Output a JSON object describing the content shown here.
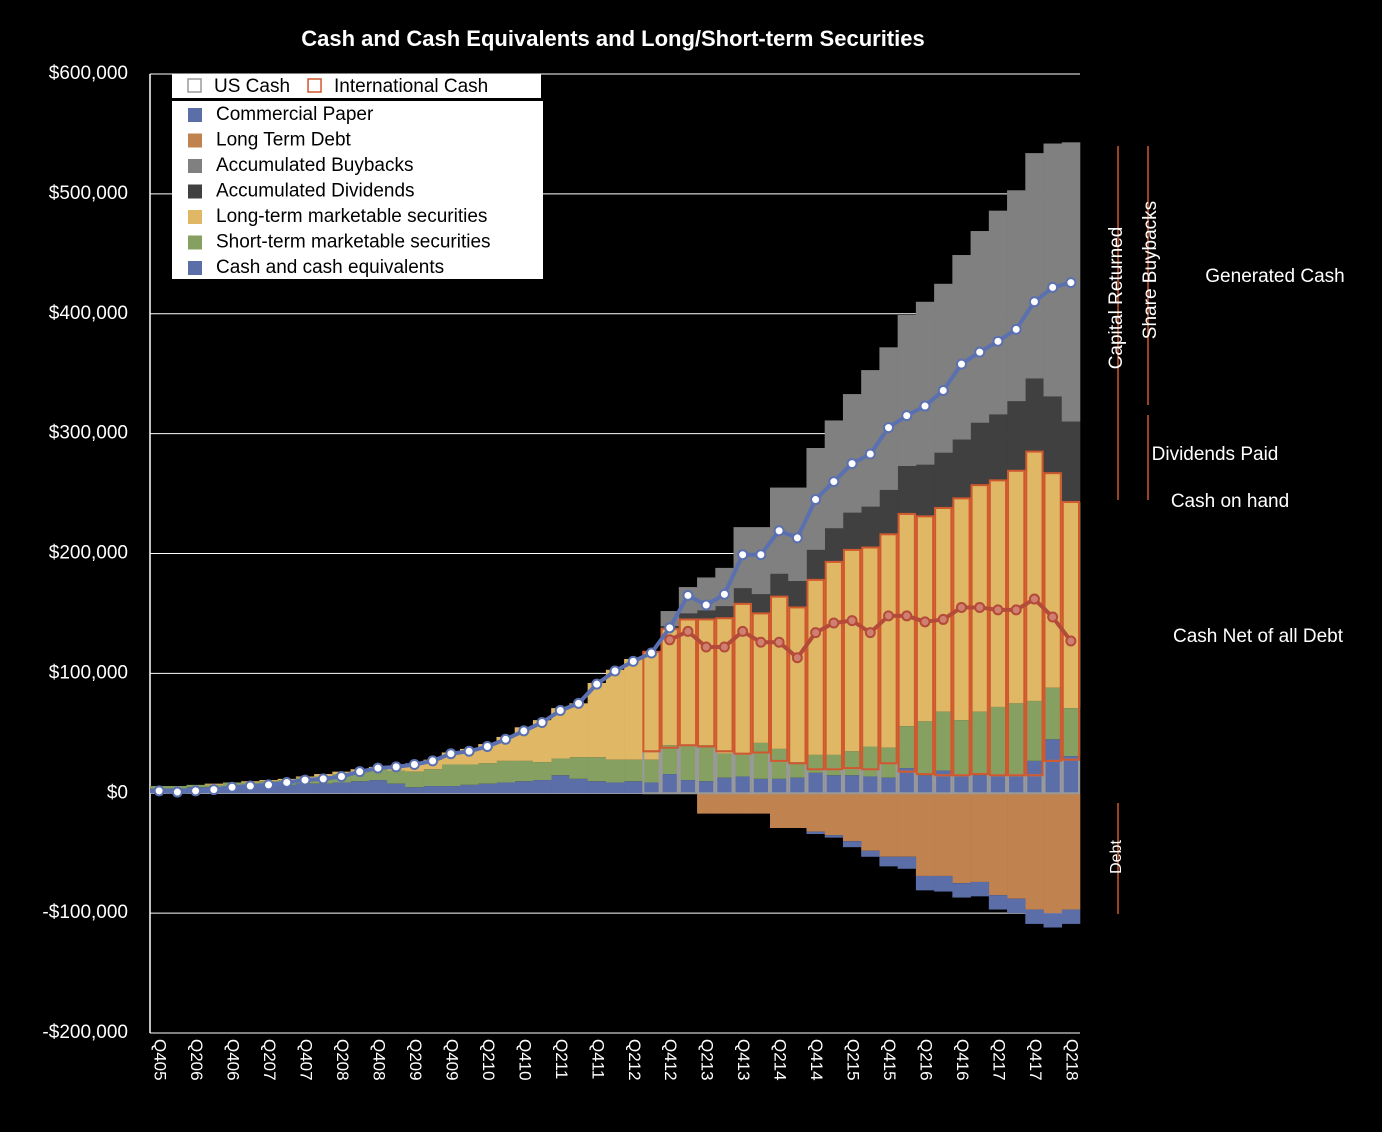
{
  "chart_data": {
    "type": "bar",
    "title": "Cash and Cash Equivalents and Long/Short-term Securities",
    "categories": [
      "Q405",
      null,
      "Q206",
      null,
      "Q406",
      null,
      "Q207",
      null,
      "Q407",
      null,
      "Q208",
      null,
      "Q408",
      null,
      "Q209",
      null,
      "Q409",
      null,
      "Q210",
      null,
      "Q410",
      null,
      "Q211",
      null,
      "Q411",
      null,
      "Q212",
      null,
      "Q412",
      null,
      "Q213",
      null,
      "Q413",
      null,
      "Q214",
      null,
      "Q414",
      null,
      "Q215",
      null,
      "Q415",
      null,
      "Q216",
      null,
      "Q416",
      null,
      "Q217",
      null,
      "Q417",
      null,
      "Q218"
    ],
    "ylim": [
      -200000,
      600000
    ],
    "yticks": [
      {
        "value": -200000,
        "label": "-$200,000"
      },
      {
        "value": -100000,
        "label": "-$100,000"
      },
      {
        "value": 0,
        "label": "$0"
      },
      {
        "value": 100000,
        "label": "$100,000"
      },
      {
        "value": 200000,
        "label": "$200,000"
      },
      {
        "value": 300000,
        "label": "$300,000"
      },
      {
        "value": 400000,
        "label": "$400,000"
      },
      {
        "value": 500000,
        "label": "$500,000"
      },
      {
        "value": 600000,
        "label": "$600,000"
      }
    ],
    "grid": true,
    "legend": "upper left",
    "series": [
      {
        "name": "Cash and cash equivalents",
        "type": "bar",
        "color": "#5b6ea8",
        "values": [
          4000,
          4000,
          5000,
          5000,
          6000,
          6000,
          7000,
          7000,
          8000,
          8000,
          9000,
          10000,
          11000,
          8000,
          5000,
          6000,
          6000,
          7000,
          8000,
          9000,
          10000,
          11000,
          15000,
          12000,
          10000,
          9000,
          10000,
          9000,
          16000,
          11000,
          10000,
          13000,
          14000,
          12000,
          12000,
          13000,
          17000,
          15000,
          15000,
          14000,
          13000,
          21000,
          15000,
          19000,
          14000,
          15000,
          14000,
          14000,
          27000,
          45000,
          31000
        ]
      },
      {
        "name": "Short-term marketable securities",
        "type": "bar",
        "color": "#86a062",
        "values": [
          2000,
          2000,
          2000,
          2000,
          3000,
          3000,
          3000,
          4000,
          5000,
          6000,
          7000,
          8000,
          9000,
          11000,
          13000,
          14000,
          18000,
          17000,
          17000,
          18000,
          17000,
          15000,
          14000,
          18000,
          20000,
          19000,
          18000,
          19000,
          24000,
          29000,
          30000,
          20000,
          18000,
          30000,
          25000,
          13000,
          15000,
          17000,
          20000,
          25000,
          25000,
          35000,
          45000,
          49000,
          47000,
          53000,
          58000,
          61000,
          50000,
          43000,
          40000
        ]
      },
      {
        "name": "Long-term marketable securities",
        "type": "bar",
        "color": "#e0b865",
        "values": [
          0,
          0,
          0,
          1000,
          0,
          1000,
          1000,
          1000,
          1000,
          2000,
          2000,
          2000,
          2000,
          4000,
          7000,
          8000,
          10000,
          13000,
          16000,
          20000,
          28000,
          35000,
          42000,
          45000,
          62000,
          75000,
          84000,
          90000,
          97000,
          105000,
          105000,
          113000,
          126000,
          108000,
          127000,
          129000,
          146000,
          161000,
          168000,
          166000,
          178000,
          177000,
          171000,
          170000,
          185000,
          189000,
          189000,
          194000,
          208000,
          179000,
          172000
        ]
      },
      {
        "name": "Accumulated Dividends",
        "type": "bar",
        "color": "#404040",
        "values": [
          null,
          null,
          null,
          null,
          null,
          null,
          null,
          null,
          null,
          null,
          null,
          null,
          null,
          null,
          null,
          null,
          null,
          null,
          null,
          null,
          null,
          null,
          null,
          null,
          null,
          null,
          null,
          null,
          2500,
          5000,
          7500,
          10000,
          13000,
          16000,
          19000,
          22000,
          25000,
          28000,
          31000,
          34000,
          37000,
          40000,
          43000,
          46000,
          49000,
          52000,
          55000,
          58000,
          61000,
          64000,
          67000
        ]
      },
      {
        "name": "Accumulated Buybacks",
        "type": "bar",
        "color": "#808080",
        "values": [
          null,
          null,
          null,
          null,
          null,
          null,
          null,
          null,
          null,
          null,
          null,
          null,
          null,
          null,
          null,
          null,
          null,
          null,
          null,
          null,
          null,
          null,
          null,
          null,
          null,
          null,
          null,
          null,
          12500,
          22000,
          27500,
          32000,
          51000,
          56000,
          72000,
          78000,
          85000,
          90000,
          99000,
          114000,
          119000,
          126000,
          136000,
          141000,
          154000,
          160000,
          170000,
          176000,
          188000,
          211000,
          233000
        ]
      },
      {
        "name": "Long Term Debt",
        "type": "bar",
        "color": "#c0824e",
        "values": [
          null,
          null,
          null,
          null,
          null,
          null,
          null,
          null,
          null,
          null,
          null,
          null,
          null,
          null,
          null,
          null,
          null,
          null,
          null,
          null,
          null,
          null,
          null,
          null,
          null,
          null,
          null,
          null,
          null,
          null,
          -17000,
          -17000,
          -17000,
          -17000,
          -29000,
          -29000,
          -32000,
          -35000,
          -40000,
          -48000,
          -53000,
          -53000,
          -69000,
          -69000,
          -75000,
          -74000,
          -85000,
          -88000,
          -97000,
          -100000,
          -97000
        ]
      },
      {
        "name": "Commercial Paper",
        "type": "bar",
        "color": "#5b6ea8",
        "values": [
          null,
          null,
          null,
          null,
          null,
          null,
          null,
          null,
          null,
          null,
          null,
          null,
          null,
          null,
          null,
          null,
          null,
          null,
          null,
          null,
          null,
          null,
          null,
          null,
          null,
          null,
          null,
          null,
          null,
          null,
          null,
          null,
          null,
          null,
          null,
          null,
          -2000,
          -2000,
          -5000,
          -5000,
          -8000,
          -10000,
          -12000,
          -13000,
          -12000,
          -12000,
          -12000,
          -12000,
          -12000,
          -12000,
          -12000
        ]
      },
      {
        "name": "US Cash",
        "type": "outline",
        "color": "#9a9a9a",
        "values": [
          null,
          null,
          null,
          null,
          null,
          null,
          null,
          null,
          null,
          null,
          null,
          null,
          null,
          null,
          null,
          null,
          null,
          null,
          null,
          null,
          null,
          null,
          null,
          null,
          null,
          null,
          null,
          35000,
          38000,
          40000,
          39000,
          35000,
          33000,
          34000,
          27000,
          25000,
          20000,
          20000,
          21000,
          20000,
          25000,
          18000,
          16000,
          15000,
          15000,
          16000,
          15000,
          15000,
          15000,
          27000,
          28000
        ]
      },
      {
        "name": "International Cash",
        "type": "outline",
        "color": "#d0582e",
        "values": [
          null,
          null,
          null,
          null,
          null,
          null,
          null,
          null,
          null,
          null,
          null,
          null,
          null,
          null,
          null,
          null,
          null,
          null,
          null,
          null,
          null,
          null,
          null,
          null,
          null,
          null,
          null,
          83000,
          99000,
          105000,
          106000,
          111000,
          125000,
          116000,
          137000,
          130000,
          158000,
          173000,
          182000,
          185000,
          191000,
          215000,
          215000,
          223000,
          231000,
          241000,
          246000,
          254000,
          270000,
          240000,
          215000
        ]
      },
      {
        "name": "Generated Cash",
        "type": "line",
        "color": "#5b70b0",
        "values": [
          2000,
          1000,
          2000,
          3000,
          5000,
          6000,
          7000,
          9000,
          11000,
          12000,
          14000,
          18000,
          21000,
          22000,
          24000,
          27000,
          33000,
          35000,
          39000,
          45000,
          52000,
          59000,
          69000,
          75000,
          91000,
          102000,
          110000,
          117000,
          138000,
          165000,
          157000,
          166000,
          199000,
          199000,
          219000,
          213000,
          245000,
          260000,
          275000,
          283000,
          305000,
          315000,
          323000,
          336000,
          358000,
          368000,
          377000,
          387000,
          410000,
          422000,
          426000
        ]
      },
      {
        "name": "Cash Net of all Debt",
        "type": "line",
        "color": "#b44a3a",
        "values": [
          null,
          null,
          null,
          null,
          null,
          null,
          null,
          null,
          null,
          null,
          null,
          null,
          null,
          null,
          null,
          null,
          null,
          null,
          null,
          null,
          null,
          null,
          null,
          null,
          null,
          null,
          null,
          null,
          128000,
          135000,
          122000,
          122000,
          135000,
          126000,
          126000,
          113000,
          134000,
          142000,
          144000,
          134000,
          148000,
          148000,
          143000,
          145000,
          155000,
          155000,
          153000,
          153000,
          162000,
          147000,
          127000
        ]
      }
    ],
    "annotations": [
      "Capital Returned",
      "Share Buybacks",
      "Dividends Paid",
      "Cash on hand",
      "Debt"
    ]
  }
}
